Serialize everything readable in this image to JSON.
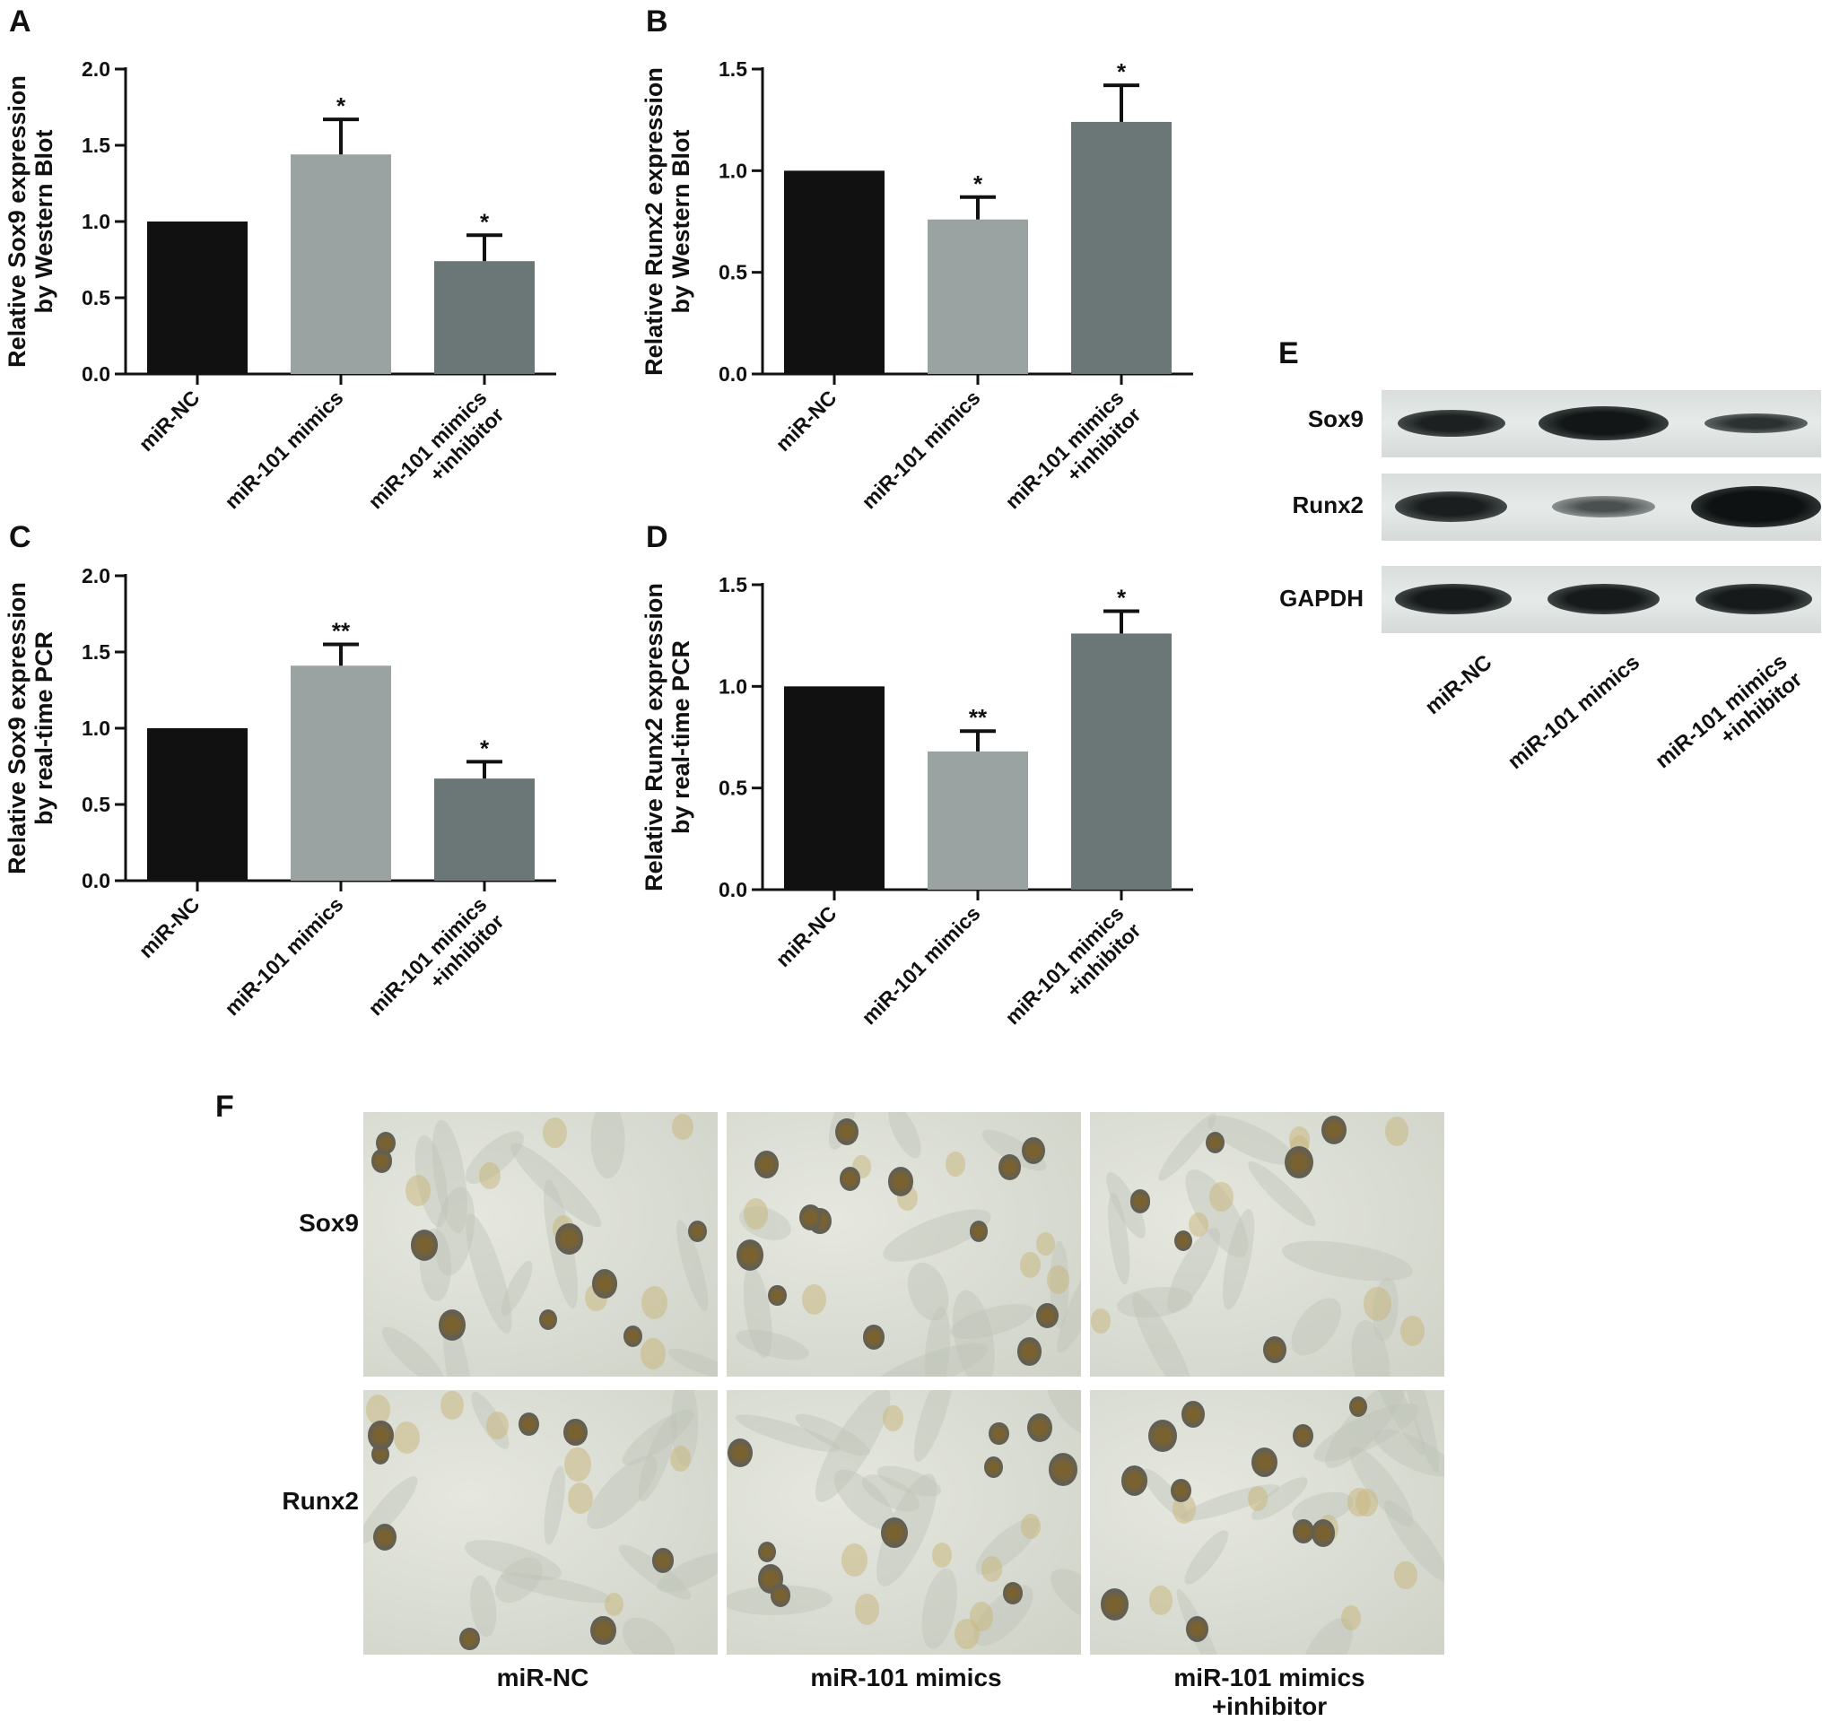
{
  "panels": {
    "A": "A",
    "B": "B",
    "C": "C",
    "D": "D",
    "E": "E",
    "F": "F"
  },
  "chart_data": [
    {
      "id": "A",
      "type": "bar",
      "categories": [
        "miR-NC",
        "miR-101 mimics",
        "miR-101 mimics\n+inhibitor"
      ],
      "values": [
        1.0,
        1.44,
        0.74
      ],
      "errors": [
        0,
        0.23,
        0.17
      ],
      "significance": [
        "",
        "*",
        "*"
      ],
      "colors": [
        "#111111",
        "#9aa3a2",
        "#6b7777"
      ],
      "ylabel": [
        "Relative Sox9 expression",
        "by Western Blot"
      ],
      "ylim": [
        0,
        2.0
      ],
      "yticks": [
        0.0,
        0.5,
        1.0,
        1.5,
        2.0
      ],
      "ytick_labels": [
        "0.0",
        "0.5",
        "1.0",
        "1.5",
        "2.0"
      ]
    },
    {
      "id": "B",
      "type": "bar",
      "categories": [
        "miR-NC",
        "miR-101 mimics",
        "miR-101 mimics\n+inhibitor"
      ],
      "values": [
        1.0,
        0.76,
        1.24
      ],
      "errors": [
        0,
        0.11,
        0.18
      ],
      "significance": [
        "",
        "*",
        "*"
      ],
      "colors": [
        "#111111",
        "#9aa3a2",
        "#6b7777"
      ],
      "ylabel": [
        "Relative Runx2 expression",
        "by Western Blot"
      ],
      "ylim": [
        0,
        1.5
      ],
      "yticks": [
        0.0,
        0.5,
        1.0,
        1.5
      ],
      "ytick_labels": [
        "0.0",
        "0.5",
        "1.0",
        "1.5"
      ]
    },
    {
      "id": "C",
      "type": "bar",
      "categories": [
        "miR-NC",
        "miR-101 mimics",
        "miR-101 mimics\n+inhibitor"
      ],
      "values": [
        1.0,
        1.41,
        0.67
      ],
      "errors": [
        0,
        0.14,
        0.11
      ],
      "significance": [
        "",
        "**",
        "*"
      ],
      "colors": [
        "#111111",
        "#9aa3a2",
        "#6b7777"
      ],
      "ylabel": [
        "Relative Sox9 expression",
        "by real-time PCR"
      ],
      "ylim": [
        0,
        2.0
      ],
      "yticks": [
        0.0,
        0.5,
        1.0,
        1.5,
        2.0
      ],
      "ytick_labels": [
        "0.0",
        "0.5",
        "1.0",
        "1.5",
        "2.0"
      ]
    },
    {
      "id": "D",
      "type": "bar",
      "categories": [
        "miR-NC",
        "miR-101 mimics",
        "miR-101 mimics\n+inhibitor"
      ],
      "values": [
        1.0,
        0.68,
        1.26
      ],
      "errors": [
        0,
        0.1,
        0.11
      ],
      "significance": [
        "",
        "**",
        "*"
      ],
      "colors": [
        "#111111",
        "#9aa3a2",
        "#6b7777"
      ],
      "ylabel": [
        "Relative Runx2 expression",
        "by real-time PCR"
      ],
      "ylim": [
        0,
        1.5
      ],
      "yticks": [
        0.0,
        0.5,
        1.0,
        1.5
      ],
      "ytick_labels": [
        "0.0",
        "0.5",
        "1.0",
        "1.5"
      ]
    }
  ],
  "western_blot": {
    "rows": [
      "Sox9",
      "Runx2",
      "GAPDH"
    ],
    "lanes": [
      "miR-NC",
      "miR-101 mimics",
      "miR-101 mimics\n+inhibitor"
    ]
  },
  "ihc": {
    "rows": [
      "Sox9",
      "Runx2"
    ],
    "columns": [
      "miR-NC",
      "miR-101 mimics",
      "miR-101 mimics\n+inhibitor"
    ]
  }
}
